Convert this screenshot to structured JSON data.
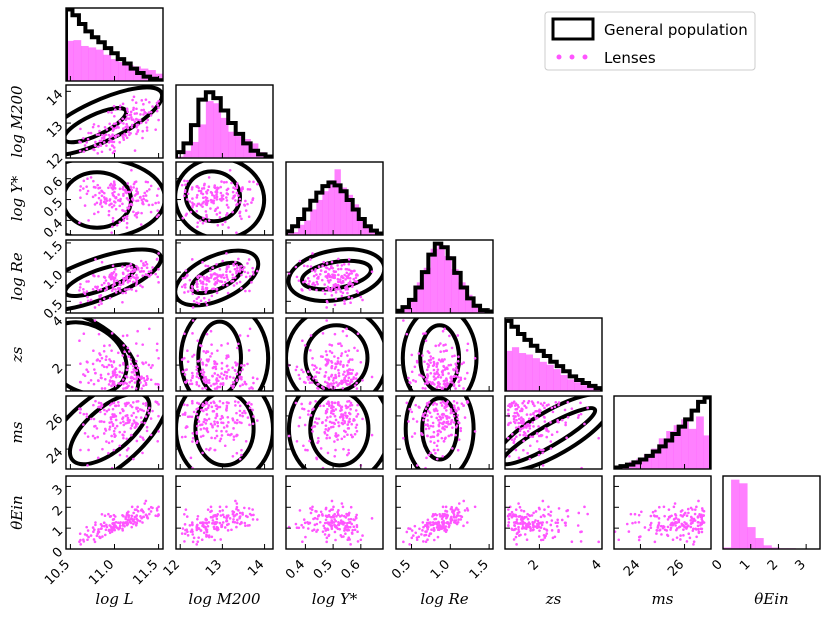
{
  "chart_data": {
    "type": "scatter",
    "subtype": "corner",
    "colors": {
      "general": "#000000",
      "lenses": "#ff55ff"
    },
    "legend": {
      "location": "top-right",
      "entries": [
        "General population",
        "Lenses"
      ]
    },
    "params": [
      {
        "key": "logL",
        "label": "log L",
        "range": [
          10.45,
          11.55
        ],
        "ticks": [
          10.5,
          11.0,
          11.5
        ],
        "ticklabels": [
          "10.5",
          "11.0",
          "11.5"
        ]
      },
      {
        "key": "logM",
        "label": "log M200",
        "range": [
          11.9,
          14.2
        ],
        "ticks": [
          12,
          13,
          14
        ],
        "ticklabels": [
          "12",
          "13",
          "14"
        ]
      },
      {
        "key": "logU",
        "label": "log Υ*",
        "range": [
          0.33,
          0.68
        ],
        "ticks": [
          0.4,
          0.5,
          0.6
        ],
        "ticklabels": [
          "0.4",
          "0.5",
          "0.6"
        ]
      },
      {
        "key": "logRe",
        "label": "log Re",
        "range": [
          0.3,
          1.55
        ],
        "ticks": [
          0.5,
          1.0,
          1.5
        ],
        "ticklabels": [
          "0.5",
          "1.0",
          "1.5"
        ]
      },
      {
        "key": "zs",
        "label": "zs",
        "range": [
          0.9,
          4.0
        ],
        "ticks": [
          2,
          4
        ],
        "ticklabels": [
          "2",
          "4"
        ]
      },
      {
        "key": "ms",
        "label": "ms",
        "range": [
          22.8,
          27.2
        ],
        "ticks": [
          24,
          26
        ],
        "ticklabels": [
          "24",
          "26"
        ]
      },
      {
        "key": "thetaE",
        "label": "θEin",
        "range": [
          0.0,
          3.5
        ],
        "ticks": [
          0,
          1,
          2,
          3
        ],
        "ticklabels": [
          "0",
          "1",
          "2",
          "3"
        ]
      }
    ],
    "marginals": [
      {
        "general": [
          0.98,
          0.9,
          0.78,
          0.68,
          0.6,
          0.53,
          0.45,
          0.38,
          0.3,
          0.24,
          0.17,
          0.11,
          0.06,
          0.03,
          0.01
        ],
        "lenses": [
          0.55,
          0.56,
          0.48,
          0.46,
          0.43,
          0.36,
          0.3,
          0.26,
          0.22,
          0.2,
          0.17,
          0.15,
          0.1
        ]
      },
      {
        "general": [
          0.08,
          0.2,
          0.45,
          0.8,
          0.9,
          0.82,
          0.65,
          0.48,
          0.33,
          0.2,
          0.1,
          0.05,
          0.02
        ],
        "lenses": [
          0.02,
          0.1,
          0.22,
          0.46,
          0.78,
          0.75,
          0.55,
          0.36,
          0.3,
          0.26,
          0.2,
          0.08,
          0.03
        ]
      },
      {
        "general": [
          0.05,
          0.12,
          0.22,
          0.35,
          0.47,
          0.58,
          0.67,
          0.72,
          0.68,
          0.6,
          0.48,
          0.35,
          0.22,
          0.12,
          0.06,
          0.02
        ],
        "lenses": [
          0.02,
          0.04,
          0.14,
          0.2,
          0.35,
          0.48,
          0.6,
          0.75,
          0.9,
          0.65,
          0.55,
          0.42,
          0.22,
          0.12,
          0.05,
          0.02
        ]
      },
      {
        "general": [
          0.03,
          0.08,
          0.18,
          0.35,
          0.56,
          0.8,
          0.95,
          0.9,
          0.75,
          0.55,
          0.35,
          0.2,
          0.1,
          0.04,
          0.02
        ],
        "lenses": [
          0.02,
          0.06,
          0.2,
          0.42,
          0.62,
          0.88,
          0.93,
          0.78,
          0.6,
          0.42,
          0.25,
          0.12,
          0.05,
          0.02
        ]
      },
      {
        "general": [
          0.96,
          0.88,
          0.78,
          0.7,
          0.62,
          0.55,
          0.48,
          0.4,
          0.34,
          0.27,
          0.2,
          0.15,
          0.11,
          0.07,
          0.04
        ],
        "lenses": [
          0.55,
          0.6,
          0.52,
          0.5,
          0.45,
          0.4,
          0.36,
          0.3,
          0.22,
          0.16,
          0.12,
          0.08,
          0.05,
          0.03
        ]
      },
      {
        "general": [
          0.02,
          0.04,
          0.06,
          0.09,
          0.13,
          0.18,
          0.24,
          0.31,
          0.39,
          0.48,
          0.58,
          0.68,
          0.8,
          0.92,
          0.98
        ],
        "lenses": [
          0.04,
          0.06,
          0.1,
          0.14,
          0.2,
          0.28,
          0.42,
          0.52,
          0.6,
          0.68,
          0.55,
          0.72,
          0.46
        ]
      },
      {
        "general": [],
        "lenses": [
          0.02,
          0.95,
          0.9,
          0.3,
          0.15,
          0.05,
          0.02,
          0.01,
          0.01,
          0.0,
          0.0,
          0.0
        ]
      }
    ]
  }
}
